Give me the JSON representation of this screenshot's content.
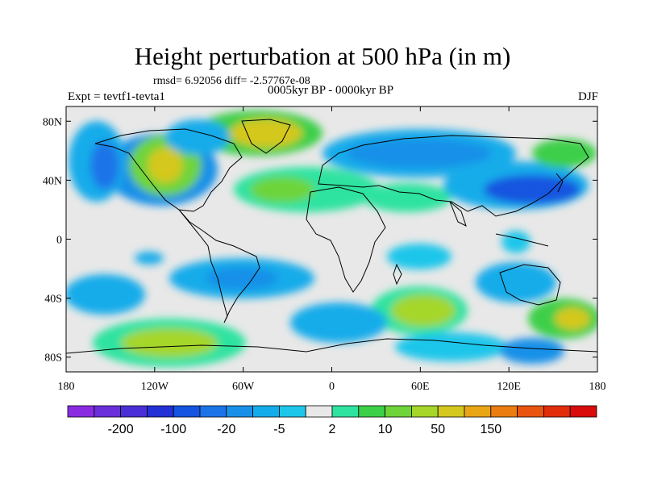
{
  "title": "Height perturbation at 500 hPa (in m)",
  "stats": "rmsd= 6.92056 diff= -2.57767e-08",
  "subtitle": "0005kyr BP - 0000kyr BP",
  "experiment": "Expt = tevtf1-tevta1",
  "season": "DJF",
  "map": {
    "lon_range": [
      -180,
      180
    ],
    "lat_range": [
      -90,
      90
    ],
    "lat_ticks": [
      {
        "value": 80,
        "label": "80N"
      },
      {
        "value": 40,
        "label": "40N"
      },
      {
        "value": 0,
        "label": "0"
      },
      {
        "value": -40,
        "label": "40S"
      },
      {
        "value": -80,
        "label": "80S"
      }
    ],
    "lon_ticks": [
      {
        "value": -180,
        "label": "180"
      },
      {
        "value": -120,
        "label": "120W"
      },
      {
        "value": -60,
        "label": "60W"
      },
      {
        "value": 0,
        "label": "0"
      },
      {
        "value": 60,
        "label": "60E"
      },
      {
        "value": 120,
        "label": "120E"
      },
      {
        "value": 180,
        "label": "180"
      }
    ]
  },
  "colorbar": {
    "colors": [
      "#8a2be2",
      "#6a2edb",
      "#4b2fd6",
      "#2330d6",
      "#1454e0",
      "#1a74e8",
      "#1990e8",
      "#14acea",
      "#1ec6ea",
      "#e8e8e8",
      "#2ee3a0",
      "#3ccf48",
      "#6ed43a",
      "#a5d629",
      "#d4c81f",
      "#e8a514",
      "#ea7c10",
      "#e9540e",
      "#e22d0b",
      "#d90b0b"
    ],
    "labels": [
      "-200",
      "-100",
      "-20",
      "-5",
      "2",
      "10",
      "50",
      "150"
    ]
  }
}
